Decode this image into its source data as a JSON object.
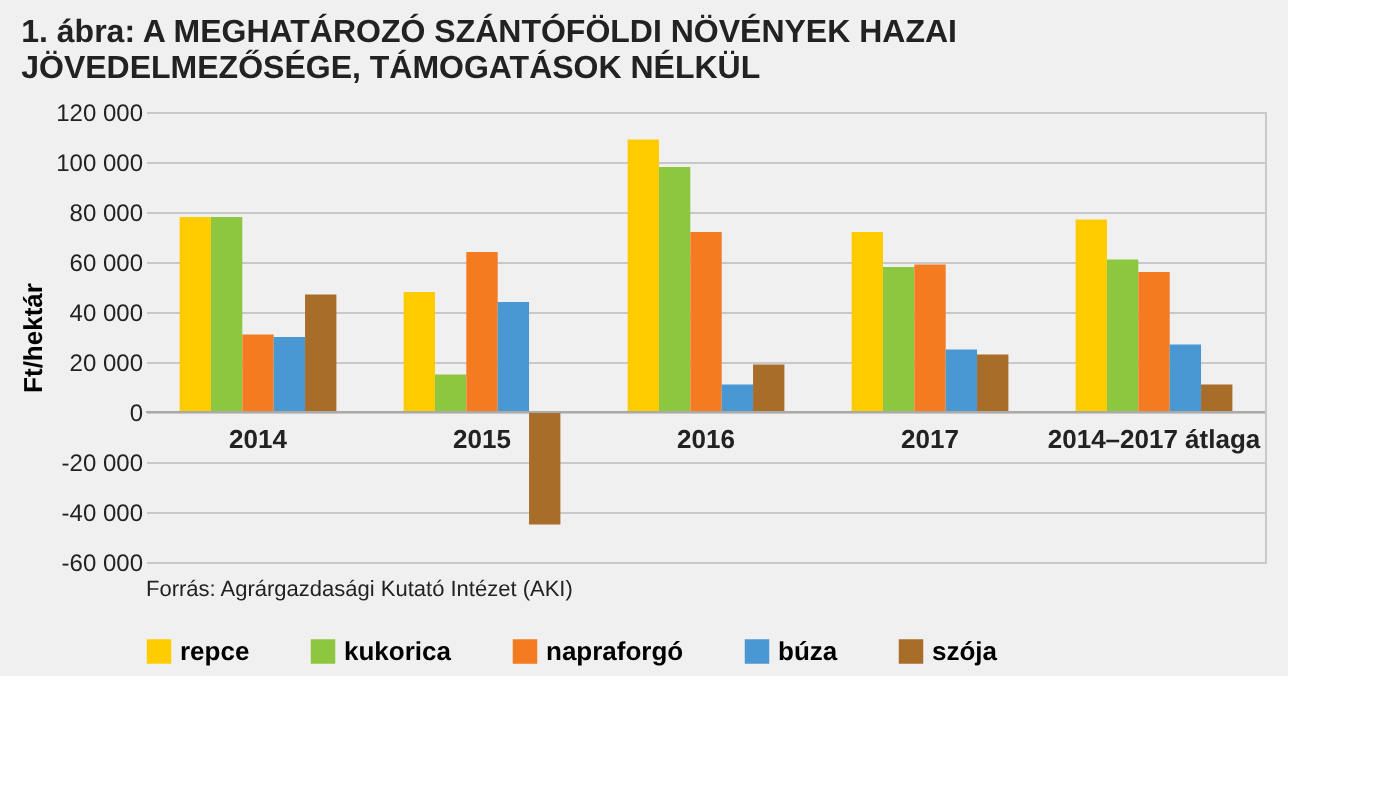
{
  "chart_data": {
    "type": "bar",
    "title": "1. ábra: A MEGHATÁROZÓ SZÁNTÓFÖLDI NÖVÉNYEK HAZAI JÖVEDELMEZŐSÉGE, TÁMOGATÁSOK NÉLKÜL",
    "ylabel": "Ft/hektár",
    "categories": [
      "2014",
      "2015",
      "2016",
      "2017",
      "2014–2017 átlaga"
    ],
    "series": [
      {
        "name": "repce",
        "color": "#ffcc00",
        "values": [
          78000,
          48000,
          109000,
          72000,
          77000
        ]
      },
      {
        "name": "kukorica",
        "color": "#8dc63f",
        "values": [
          78000,
          15000,
          98000,
          58000,
          61000
        ]
      },
      {
        "name": "napraforgó",
        "color": "#f47b20",
        "values": [
          31000,
          64000,
          72000,
          59000,
          56000
        ]
      },
      {
        "name": "búza",
        "color": "#4a98d3",
        "values": [
          30000,
          44000,
          11000,
          25000,
          27000
        ]
      },
      {
        "name": "szója",
        "color": "#a86d28",
        "values": [
          47000,
          -45000,
          19000,
          23000,
          11000
        ]
      }
    ],
    "ylim": [
      -60000,
      120000
    ],
    "yticks": [
      {
        "value": -60000,
        "label": "-60 000"
      },
      {
        "value": -40000,
        "label": "-40 000"
      },
      {
        "value": -20000,
        "label": "-20 000"
      },
      0,
      {
        "value": 20000,
        "label": "20 000"
      },
      {
        "value": 40000,
        "label": "40 000"
      },
      {
        "value": 60000,
        "label": "60 000"
      },
      {
        "value": 80000,
        "label": "80 000"
      },
      {
        "value": 100000,
        "label": "100 000"
      },
      {
        "value": 120000,
        "label": "120 000"
      }
    ],
    "grid": "y",
    "legend": "bottom",
    "annotations": [
      "Forrás: Agrárgazdasági Kutató Intézet (AKI)"
    ]
  }
}
